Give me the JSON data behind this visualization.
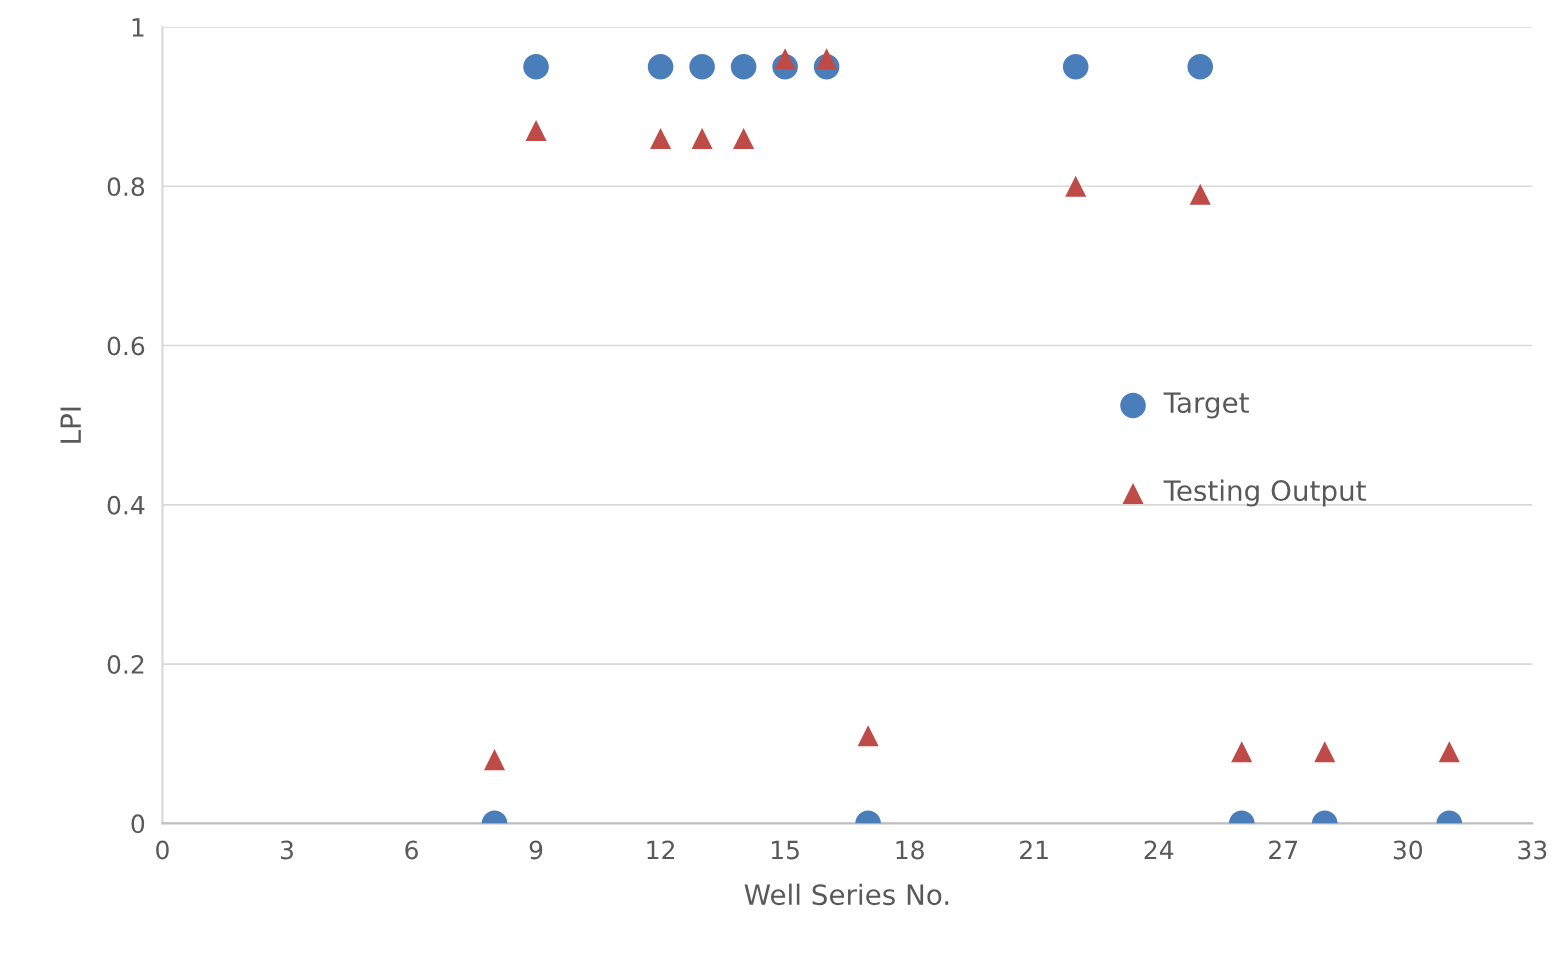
{
  "chart_data": {
    "type": "scatter",
    "xlabel": "Well Series No.",
    "ylabel": "LPI",
    "xlim": [
      0,
      33
    ],
    "xticks": [
      0,
      3,
      6,
      9,
      12,
      15,
      18,
      21,
      24,
      27,
      30,
      33
    ],
    "ylim": [
      0,
      1
    ],
    "yticks": [
      0,
      0.2,
      0.4,
      0.6,
      0.8,
      {
        "value": 1,
        "label": "1"
      }
    ],
    "grid": "y",
    "legend": "right",
    "x": [
      8,
      9,
      12,
      13,
      14,
      15,
      16,
      17,
      22,
      25,
      26,
      28,
      31
    ],
    "series": [
      {
        "name": "Target",
        "color": "#4a7ebb",
        "marker": "circle",
        "values": [
          0,
          0.95,
          0.95,
          0.95,
          0.95,
          0.95,
          0.95,
          0,
          0.95,
          0.95,
          0,
          0,
          0
        ]
      },
      {
        "name": "Testing Output",
        "color": "#be4b48",
        "marker": "triangle",
        "values": [
          0.08,
          0.87,
          0.86,
          0.86,
          0.86,
          0.96,
          0.96,
          0.11,
          0.8,
          0.79,
          0.09,
          0.09,
          0.09
        ]
      }
    ]
  }
}
